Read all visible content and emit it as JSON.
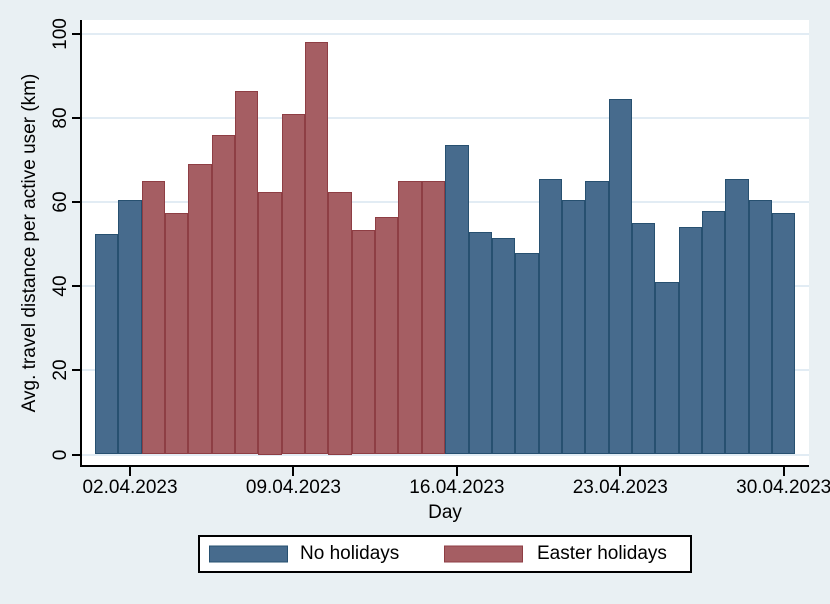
{
  "colors": {
    "background": "#e9f0f3",
    "plot_background": "#ffffff",
    "grid": "#e2ecf4",
    "axis": "#000000",
    "no_holidays_fill": "#476b8d",
    "no_holidays_border": "#275070",
    "easter_holidays_fill": "#a55e63",
    "easter_holidays_border": "#8e3e44"
  },
  "legend": {
    "items": [
      {
        "label": "No holidays",
        "fill": "#476b8d",
        "border": "#275070"
      },
      {
        "label": "Easter holidays",
        "fill": "#a55e63",
        "border": "#8e3e44"
      }
    ]
  },
  "y_axis": {
    "tick_values": [
      0,
      20,
      40,
      60,
      80,
      100
    ],
    "tick_labels": [
      "0",
      "20",
      "40",
      "60",
      "80",
      "100"
    ]
  },
  "x_axis": {
    "ticks": [
      {
        "index": 1,
        "label": "02.04.2023"
      },
      {
        "index": 8,
        "label": "09.04.2023"
      },
      {
        "index": 15,
        "label": "16.04.2023"
      },
      {
        "index": 22,
        "label": "23.04.2023"
      },
      {
        "index": 29,
        "label": "30.04.2023"
      }
    ]
  },
  "chart_data": {
    "type": "bar",
    "title": "",
    "xlabel": "Day",
    "ylabel": "Avg. travel distance per active user (km)",
    "ylim": [
      0,
      100
    ],
    "grid": true,
    "legend_position": "bottom",
    "categories": [
      "01.04.2023",
      "02.04.2023",
      "03.04.2023",
      "04.04.2023",
      "05.04.2023",
      "06.04.2023",
      "07.04.2023",
      "08.04.2023",
      "09.04.2023",
      "10.04.2023",
      "11.04.2023",
      "12.04.2023",
      "13.04.2023",
      "14.04.2023",
      "15.04.2023",
      "16.04.2023",
      "17.04.2023",
      "18.04.2023",
      "19.04.2023",
      "20.04.2023",
      "21.04.2023",
      "22.04.2023",
      "23.04.2023",
      "24.04.2023",
      "25.04.2023",
      "26.04.2023",
      "27.04.2023",
      "28.04.2023",
      "29.04.2023",
      "30.04.2023"
    ],
    "values": [
      52.5,
      60.5,
      65,
      57.5,
      69,
      76,
      86.5,
      62.5,
      81,
      98,
      62.5,
      53.5,
      56.5,
      65,
      65,
      73.5,
      53,
      51.5,
      48,
      65.5,
      60.5,
      65,
      84.5,
      55,
      41,
      54,
      58,
      65.5,
      60.5,
      57.5
    ],
    "groups": [
      "No holidays",
      "No holidays",
      "Easter holidays",
      "Easter holidays",
      "Easter holidays",
      "Easter holidays",
      "Easter holidays",
      "Easter holidays",
      "Easter holidays",
      "Easter holidays",
      "Easter holidays",
      "Easter holidays",
      "Easter holidays",
      "Easter holidays",
      "Easter holidays",
      "No holidays",
      "No holidays",
      "No holidays",
      "No holidays",
      "No holidays",
      "No holidays",
      "No holidays",
      "No holidays",
      "No holidays",
      "No holidays",
      "No holidays",
      "No holidays",
      "No holidays",
      "No holidays",
      "No holidays"
    ]
  }
}
